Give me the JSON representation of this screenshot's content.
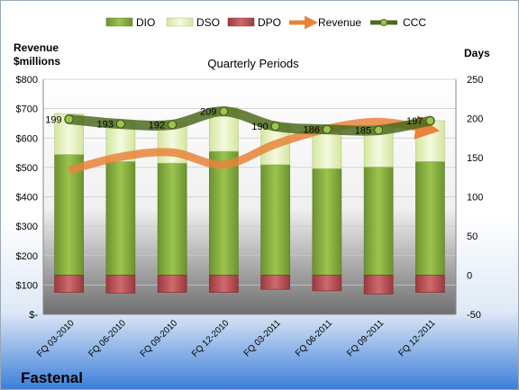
{
  "company": "Fastenal",
  "colors": {
    "dio": "#7fa336",
    "dso": "#e4f0bd",
    "dpo": "#b34a4e",
    "revenue": "#e8843a",
    "ccc": "#4d6a1f"
  },
  "chart_data": {
    "type": "bar",
    "title": "Quarterly Periods",
    "categories": [
      "FQ 03-2010",
      "FQ 06-2010",
      "FQ 09-2010",
      "FQ 12-2010",
      "FQ 03-2011",
      "FQ 06-2011",
      "FQ 09-2011",
      "FQ 12-2011"
    ],
    "y_left": {
      "label_line1": "Revenue",
      "label_line2": "$millions",
      "range": [
        0,
        800
      ],
      "ticks": [
        0,
        100,
        200,
        300,
        400,
        500,
        600,
        700,
        800
      ],
      "tick_labels": [
        "$-",
        "$100",
        "$200",
        "$300",
        "$400",
        "$500",
        "$600",
        "$700",
        "$800"
      ]
    },
    "y_right": {
      "label": "Days",
      "range": [
        -50,
        250
      ],
      "ticks": [
        -50,
        0,
        50,
        100,
        150,
        200,
        250
      ],
      "tick_labels": [
        "-50",
        "0",
        "50",
        "100",
        "150",
        "200",
        "250"
      ]
    },
    "legend": {
      "position": "top",
      "entries": [
        "DIO",
        "DSO",
        "DPO",
        "Revenue",
        "CCC"
      ]
    },
    "series": [
      {
        "name": "DIO",
        "axis": "right",
        "stacked": true,
        "values": [
          154,
          145,
          143,
          158,
          141,
          136,
          138,
          145
        ]
      },
      {
        "name": "DSO",
        "axis": "right",
        "stacked": true,
        "values": [
          52,
          52,
          53,
          56,
          51,
          51,
          52,
          52
        ]
      },
      {
        "name": "DPO",
        "axis": "right",
        "stacked": "negative",
        "values": [
          -22,
          -23,
          -22,
          -22,
          -18,
          -20,
          -24,
          -22
        ]
      },
      {
        "name": "Revenue",
        "axis": "left",
        "type": "line",
        "values": [
          490,
          536,
          551,
          509,
          579,
          631,
          655,
          629
        ]
      },
      {
        "name": "CCC",
        "axis": "right",
        "type": "line",
        "values": [
          199,
          193,
          192,
          209,
          190,
          186,
          185,
          197
        ],
        "labels": [
          "199",
          "193",
          "192",
          "209",
          "190",
          "186",
          "185",
          "197"
        ]
      }
    ]
  }
}
